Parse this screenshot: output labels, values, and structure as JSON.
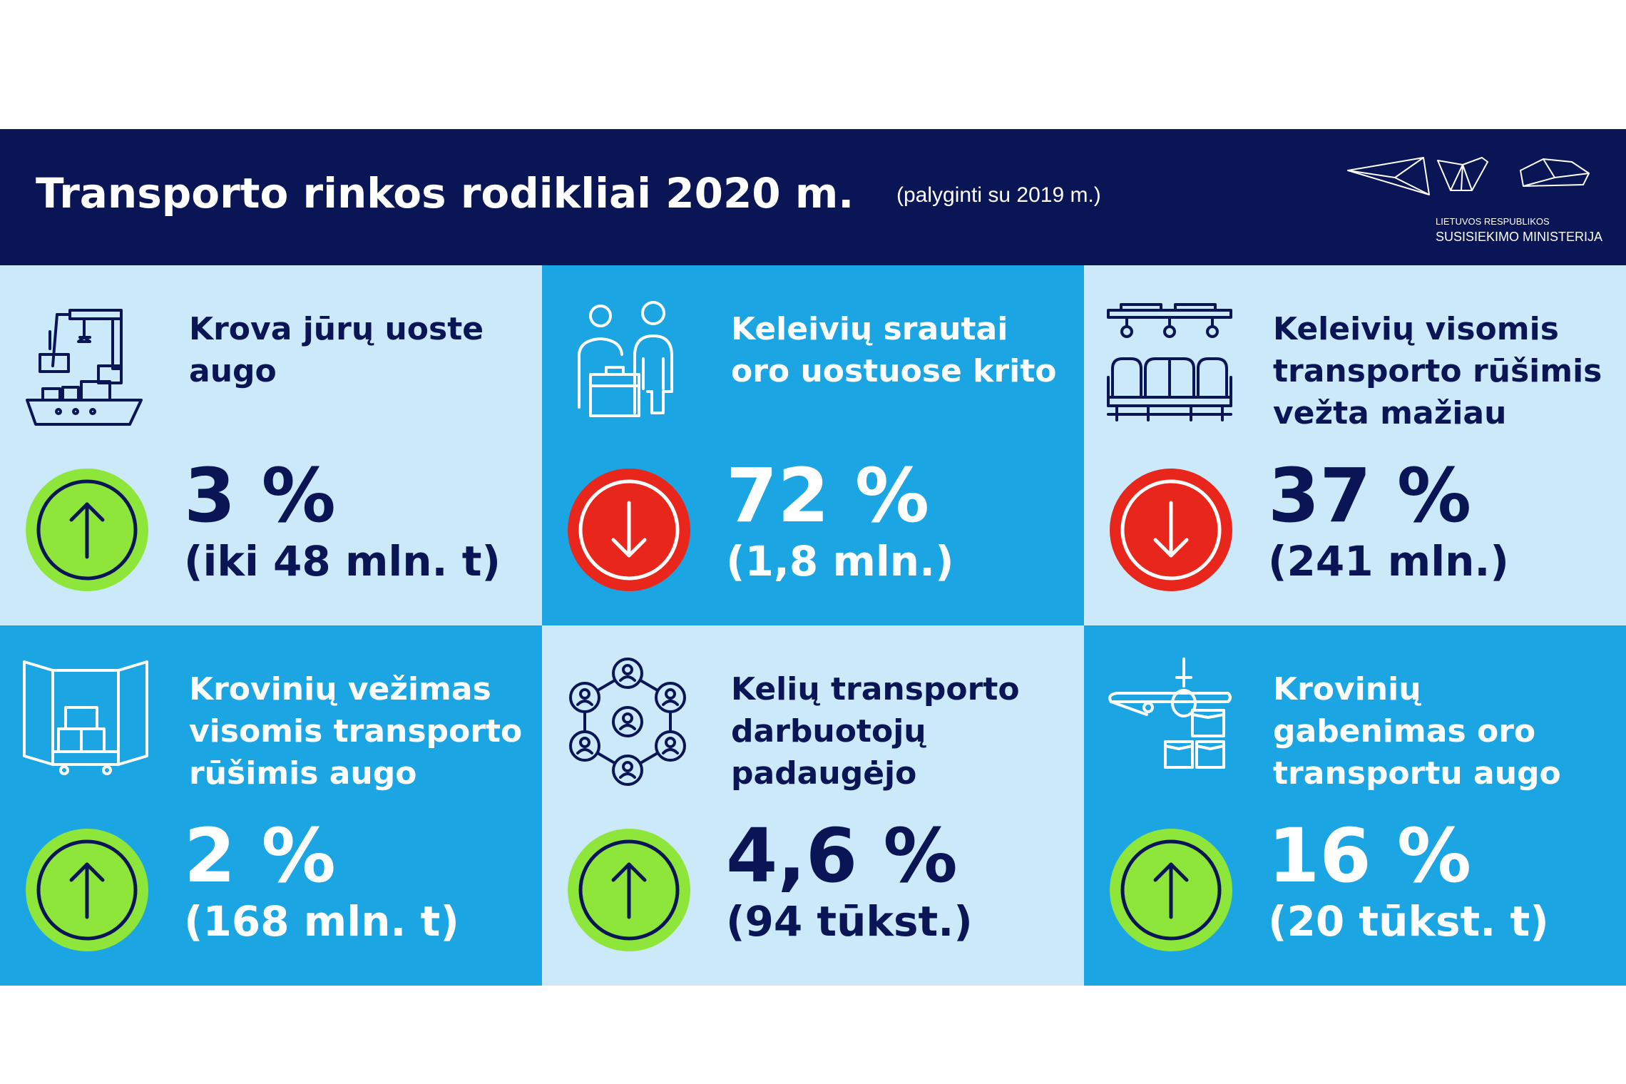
{
  "header": {
    "title": "Transporto rinkos rodikliai 2020 m.",
    "subtitle": "(palyginti su 2019 m.)",
    "logo_small": "LIETUVOS RESPUBLIKOS",
    "logo_big": "SUSISIEKIMO MINISTERIJA"
  },
  "colors": {
    "navy": "#0a1556",
    "light_blue": "#cbe9f8",
    "mid_blue": "#1ca5e3",
    "up_green": "#8ee63a",
    "down_red": "#e8261c"
  },
  "cards": [
    {
      "icon": "cargo-ship-crane-icon",
      "label": "Krova jūrų uoste augo",
      "direction": "up",
      "value": "3 %",
      "detail": "(iki 48 mln. t)"
    },
    {
      "icon": "passengers-luggage-icon",
      "label": "Keleivių srautai oro uostuose krito",
      "direction": "down",
      "value": "72 %",
      "detail": "(1,8 mln.)"
    },
    {
      "icon": "seats-icon",
      "label": "Keleivių visomis transporto rūšimis vežta mažiau",
      "direction": "down",
      "value": "37 %",
      "detail": "(241 mln.)"
    },
    {
      "icon": "truck-cargo-icon",
      "label": "Krovinių vežimas visomis transporto rūšimis augo",
      "direction": "up",
      "value": "2 %",
      "detail": "(168 mln. t)"
    },
    {
      "icon": "people-network-icon",
      "label": "Kelių transporto darbuotojų padaugėjo",
      "direction": "up",
      "value": "4,6 %",
      "detail": "(94 tūkst.)"
    },
    {
      "icon": "airplane-boxes-icon",
      "label": "Krovinių gabenimas oro transportu augo",
      "direction": "up",
      "value": "16 %",
      "detail": "(20 tūkst. t)"
    }
  ]
}
